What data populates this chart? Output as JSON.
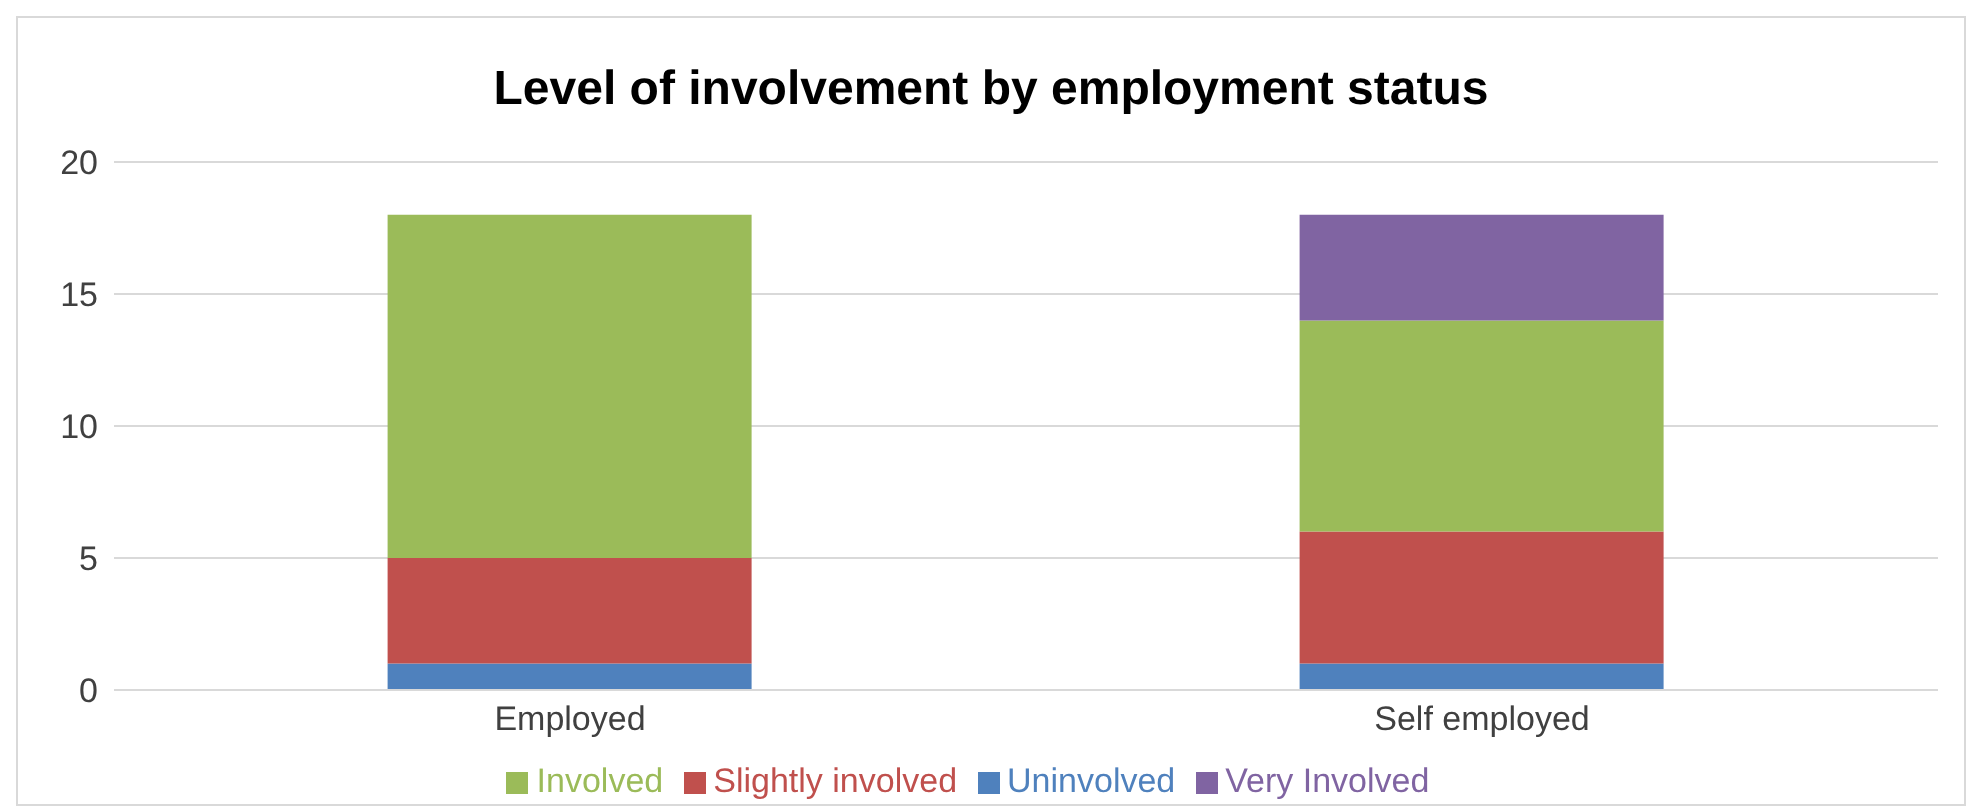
{
  "chart_data": {
    "type": "bar",
    "title": "Level of involvement by employment status",
    "categories": [
      "Employed",
      "Self employed"
    ],
    "stacked": true,
    "series": [
      {
        "name": "Uninvolved",
        "color": "#4f81bd",
        "values": [
          1,
          1
        ]
      },
      {
        "name": "Slightly involved",
        "color": "#c0504d",
        "values": [
          4,
          5
        ]
      },
      {
        "name": "Involved",
        "color": "#9bbb59",
        "values": [
          13,
          8
        ]
      },
      {
        "name": "Very Involved",
        "color": "#8064a2",
        "values": [
          0,
          4
        ]
      }
    ],
    "ylim": [
      0,
      20
    ],
    "yticks": [
      0,
      5,
      10,
      15,
      20
    ],
    "grid": "y",
    "legend": "bottom"
  }
}
